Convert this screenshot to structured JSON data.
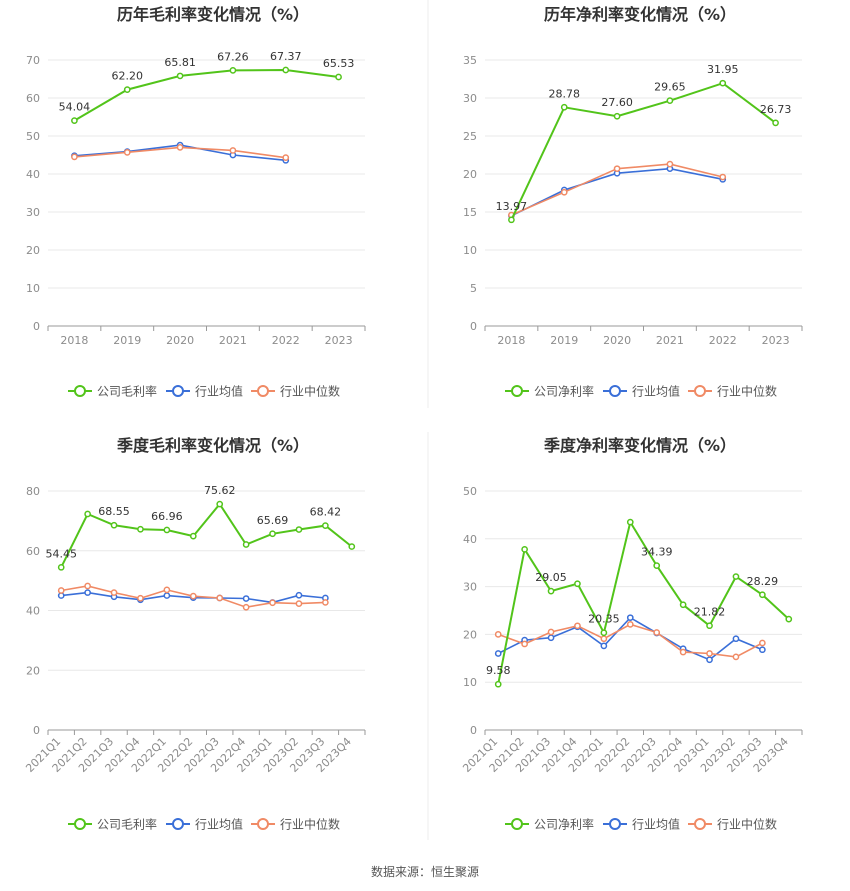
{
  "source_note": "数据来源：恒生聚源",
  "legend_labels": {
    "gross": "公司毛利率",
    "net": "公司净利率",
    "avg": "行业均值",
    "median": "行业中位数"
  },
  "colors": {
    "company": "#52c41a",
    "industry_avg": "#3a6fd8",
    "industry_median": "#f08a65",
    "grid": "#e8e8e8",
    "axis": "#999999",
    "divider": "#eeeeee"
  },
  "chart_data": [
    {
      "type": "line",
      "title": "历年毛利率变化情况（%）",
      "categories": [
        "2018",
        "2019",
        "2020",
        "2021",
        "2022",
        "2023"
      ],
      "ylim": [
        0,
        70
      ],
      "yticks": [
        0,
        10,
        20,
        30,
        40,
        50,
        60,
        70
      ],
      "series": [
        {
          "name": "公司毛利率",
          "values": [
            54.04,
            62.2,
            65.81,
            67.26,
            67.37,
            65.53
          ]
        },
        {
          "name": "行业均值",
          "values": [
            44.8,
            45.9,
            47.6,
            45.0,
            43.6,
            null
          ]
        },
        {
          "name": "行业中位数",
          "values": [
            44.5,
            45.7,
            47.0,
            46.2,
            44.3,
            null
          ]
        }
      ],
      "data_labels": [
        "54.04",
        "62.20",
        "65.81",
        "67.26",
        "67.37",
        "65.53"
      ],
      "grid": true,
      "legend": "bottom"
    },
    {
      "type": "line",
      "title": "历年净利率变化情况（%）",
      "categories": [
        "2018",
        "2019",
        "2020",
        "2021",
        "2022",
        "2023"
      ],
      "ylim": [
        0,
        35
      ],
      "yticks": [
        0,
        5,
        10,
        15,
        20,
        25,
        30,
        35
      ],
      "series": [
        {
          "name": "公司净利率",
          "values": [
            13.97,
            28.78,
            27.6,
            29.65,
            31.95,
            26.73
          ]
        },
        {
          "name": "行业均值",
          "values": [
            14.5,
            17.9,
            20.1,
            20.7,
            19.3,
            null
          ]
        },
        {
          "name": "行业中位数",
          "values": [
            14.6,
            17.6,
            20.7,
            21.3,
            19.6,
            null
          ]
        }
      ],
      "data_labels": [
        "13.97",
        "28.78",
        "27.60",
        "29.65",
        "31.95",
        "26.73"
      ],
      "grid": true,
      "legend": "bottom"
    },
    {
      "type": "line",
      "title": "季度毛利率变化情况（%）",
      "categories": [
        "2021Q1",
        "2021Q2",
        "2021Q3",
        "2021Q4",
        "2022Q1",
        "2022Q2",
        "2022Q3",
        "2022Q4",
        "2023Q1",
        "2023Q2",
        "2023Q3",
        "2023Q4"
      ],
      "ylim": [
        0,
        80
      ],
      "yticks": [
        0,
        20,
        40,
        60,
        80
      ],
      "series": [
        {
          "name": "公司毛利率",
          "values": [
            54.45,
            72.3,
            68.55,
            67.2,
            66.96,
            64.9,
            75.62,
            62.1,
            65.69,
            67.1,
            68.42,
            61.4
          ]
        },
        {
          "name": "行业均值",
          "values": [
            45.0,
            46.0,
            44.6,
            43.6,
            45.0,
            44.3,
            44.2,
            44.0,
            42.7,
            45.1,
            44.2,
            null
          ]
        },
        {
          "name": "行业中位数",
          "values": [
            46.7,
            48.2,
            46.0,
            44.1,
            46.9,
            44.8,
            44.2,
            41.1,
            42.6,
            42.3,
            42.7,
            null
          ]
        }
      ],
      "data_labels": [
        "54.45",
        "",
        "68.55",
        "",
        "66.96",
        "",
        "75.62",
        "",
        "65.69",
        "",
        "68.42",
        ""
      ],
      "grid": true,
      "legend": "bottom"
    },
    {
      "type": "line",
      "title": "季度净利率变化情况（%）",
      "categories": [
        "2021Q1",
        "2021Q2",
        "2021Q3",
        "2021Q4",
        "2022Q1",
        "2022Q2",
        "2022Q3",
        "2022Q4",
        "2023Q1",
        "2023Q2",
        "2023Q3",
        "2023Q4"
      ],
      "ylim": [
        0,
        50
      ],
      "yticks": [
        0,
        10,
        20,
        30,
        40,
        50
      ],
      "series": [
        {
          "name": "公司净利率",
          "values": [
            9.58,
            37.8,
            29.05,
            30.6,
            20.35,
            43.5,
            34.39,
            26.2,
            21.82,
            32.1,
            28.29,
            23.2
          ]
        },
        {
          "name": "行业均值",
          "values": [
            16.0,
            18.8,
            19.3,
            21.6,
            17.6,
            23.5,
            20.3,
            17.0,
            14.7,
            19.1,
            16.8,
            null
          ]
        },
        {
          "name": "行业中位数",
          "values": [
            20.0,
            18.0,
            20.5,
            21.8,
            19.1,
            22.1,
            20.4,
            16.3,
            16.0,
            15.3,
            18.2,
            null
          ]
        }
      ],
      "data_labels": [
        "9.58",
        "",
        "29.05",
        "",
        "20.35",
        "",
        "34.39",
        "",
        "21.82",
        "",
        "28.29",
        ""
      ],
      "grid": true,
      "legend": "bottom"
    }
  ]
}
